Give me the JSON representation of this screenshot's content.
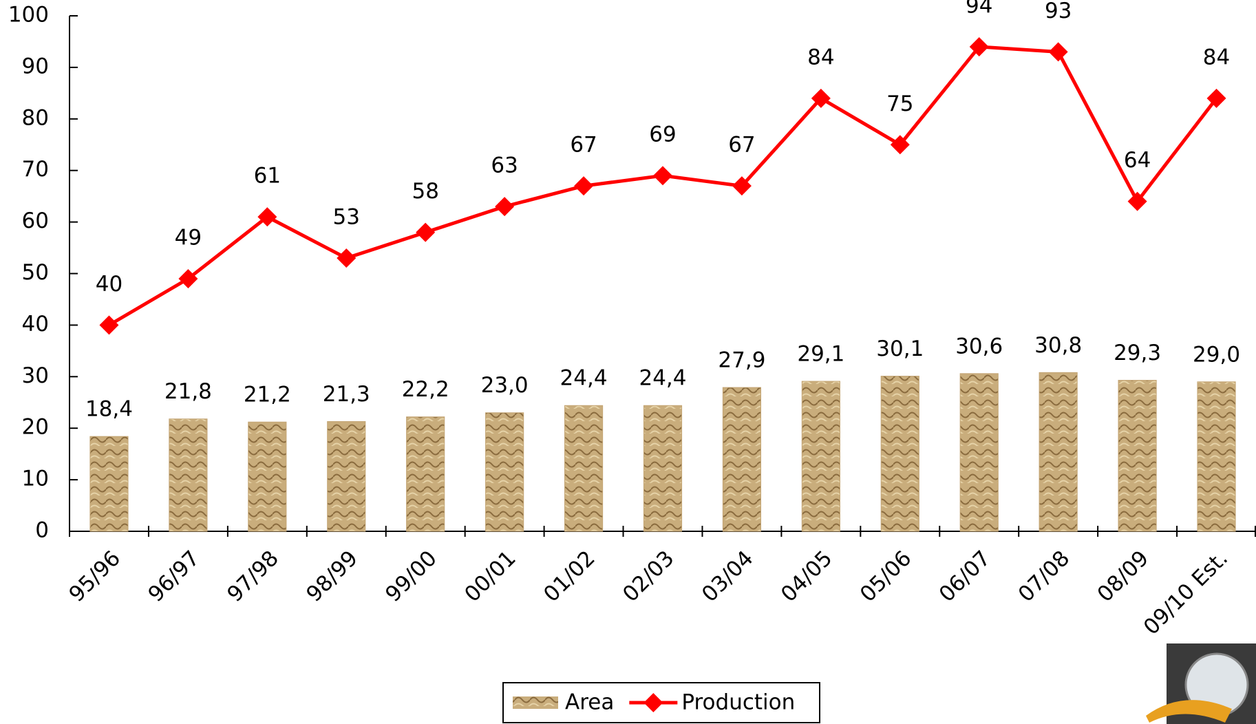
{
  "chart_data": {
    "type": "bar",
    "categories": [
      "95/96",
      "96/97",
      "97/98",
      "98/99",
      "99/00",
      "00/01",
      "01/02",
      "02/03",
      "03/04",
      "04/05",
      "05/06",
      "06/07",
      "07/08",
      "08/09",
      "09/10 Est."
    ],
    "series": [
      {
        "name": "Area",
        "type": "bar",
        "color": "#c4a574",
        "values": [
          18.4,
          21.8,
          21.2,
          21.3,
          22.2,
          23.0,
          24.4,
          24.4,
          27.9,
          29.1,
          30.1,
          30.6,
          30.8,
          29.3,
          29.0
        ],
        "value_labels": [
          "18,4",
          "21,8",
          "21,2",
          "21,3",
          "22,2",
          "23,0",
          "24,4",
          "24,4",
          "27,9",
          "29,1",
          "30,1",
          "30,6",
          "30,8",
          "29,3",
          "29,0"
        ]
      },
      {
        "name": "Production",
        "type": "line",
        "color": "#ff0000",
        "values": [
          40,
          49,
          61,
          53,
          58,
          63,
          67,
          69,
          67,
          84,
          75,
          94,
          93,
          64,
          84
        ]
      }
    ],
    "ylim": [
      0,
      100
    ],
    "yticks": [
      0,
      10,
      20,
      30,
      40,
      50,
      60,
      70,
      80,
      90,
      100
    ],
    "grid": false,
    "legend": "bottom"
  }
}
